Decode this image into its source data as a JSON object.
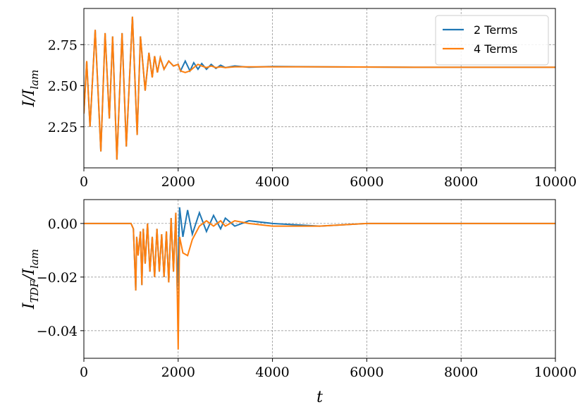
{
  "chart_data": [
    {
      "type": "line",
      "ylabel": {
        "main": "I/I",
        "sub": "lam"
      },
      "legend": "upper right",
      "grid": true,
      "xlim": [
        0,
        10000
      ],
      "xticks": [
        0,
        2000,
        4000,
        6000,
        8000,
        10000
      ],
      "ylim": [
        2.0,
        2.97
      ],
      "yticks": [
        {
          "value": 2.25,
          "label": "2.25"
        },
        {
          "value": 2.5,
          "label": "2.50"
        },
        {
          "value": 2.75,
          "label": "2.75"
        }
      ],
      "x": [
        0,
        60,
        130,
        240,
        360,
        450,
        540,
        610,
        700,
        810,
        900,
        1030,
        1130,
        1200,
        1300,
        1380,
        1450,
        1500,
        1560,
        1620,
        1700,
        1800,
        1900,
        2000,
        2050,
        2150,
        2250,
        2330,
        2420,
        2500,
        2600,
        2700,
        2800,
        2900,
        3000,
        3200,
        3500,
        4000,
        5000,
        7000,
        10000
      ],
      "series": [
        {
          "name": "2 Terms",
          "color": "#1f77b4",
          "values": [
            2.33,
            2.65,
            2.25,
            2.84,
            2.1,
            2.82,
            2.3,
            2.8,
            2.05,
            2.82,
            2.13,
            2.92,
            2.2,
            2.8,
            2.47,
            2.7,
            2.55,
            2.68,
            2.58,
            2.67,
            2.6,
            2.65,
            2.62,
            2.63,
            2.59,
            2.65,
            2.59,
            2.64,
            2.6,
            2.635,
            2.6,
            2.63,
            2.605,
            2.625,
            2.61,
            2.62,
            2.612,
            2.617,
            2.615,
            2.612,
            2.612
          ]
        },
        {
          "name": "4 Terms",
          "color": "#ff7f0e",
          "values": [
            2.33,
            2.65,
            2.25,
            2.84,
            2.1,
            2.82,
            2.3,
            2.8,
            2.05,
            2.82,
            2.13,
            2.92,
            2.2,
            2.8,
            2.47,
            2.7,
            2.55,
            2.68,
            2.58,
            2.67,
            2.6,
            2.65,
            2.62,
            2.63,
            2.59,
            2.58,
            2.59,
            2.61,
            2.63,
            2.62,
            2.61,
            2.62,
            2.61,
            2.615,
            2.61,
            2.615,
            2.615,
            2.615,
            2.615,
            2.612,
            2.612
          ]
        }
      ]
    },
    {
      "type": "line",
      "ylabel": {
        "main": "I",
        "sub": "TDF",
        "main2": "/I",
        "sub2": "lam"
      },
      "xlabel": "t",
      "grid": true,
      "xlim": [
        0,
        10000
      ],
      "xticks": [
        0,
        2000,
        4000,
        6000,
        8000,
        10000
      ],
      "ylim": [
        -0.0503,
        0.0089
      ],
      "yticks": [
        {
          "value": -0.04,
          "label": "−0.04"
        },
        {
          "value": -0.02,
          "label": "−0.02"
        },
        {
          "value": 0,
          "label": "0.00"
        }
      ],
      "x": [
        0,
        1000,
        1050,
        1100,
        1120,
        1150,
        1200,
        1230,
        1260,
        1300,
        1350,
        1400,
        1450,
        1500,
        1550,
        1600,
        1650,
        1700,
        1750,
        1800,
        1850,
        1900,
        1950,
        1980,
        2000,
        2030,
        2100,
        2200,
        2300,
        2450,
        2600,
        2750,
        2900,
        3000,
        3200,
        3500,
        4000,
        5000,
        6000,
        10000
      ],
      "series": [
        {
          "name": "2 Terms",
          "color": "#1f77b4",
          "values": [
            0,
            0,
            -0.002,
            -0.025,
            -0.005,
            -0.012,
            -0.003,
            -0.023,
            -0.002,
            -0.015,
            0,
            -0.018,
            -0.005,
            -0.02,
            -0.002,
            -0.018,
            -0.004,
            -0.02,
            -0.003,
            -0.022,
            0.002,
            -0.018,
            0.004,
            -0.025,
            -0.015,
            0.006,
            -0.005,
            0.005,
            -0.004,
            0.004,
            -0.003,
            0.003,
            -0.002,
            0.002,
            -0.001,
            0.001,
            0,
            -0.001,
            0,
            0
          ]
        },
        {
          "name": "4 Terms",
          "color": "#ff7f0e",
          "values": [
            0,
            0,
            -0.002,
            -0.025,
            -0.005,
            -0.012,
            -0.003,
            -0.023,
            -0.002,
            -0.015,
            0,
            -0.018,
            -0.005,
            -0.02,
            -0.002,
            -0.018,
            -0.004,
            -0.02,
            -0.003,
            -0.022,
            0.002,
            -0.018,
            0.004,
            -0.025,
            -0.047,
            -0.005,
            -0.011,
            -0.012,
            -0.006,
            -0.001,
            0.001,
            -0.001,
            0.001,
            -0.001,
            0.001,
            0,
            -0.001,
            -0.001,
            0,
            0
          ]
        }
      ]
    }
  ]
}
